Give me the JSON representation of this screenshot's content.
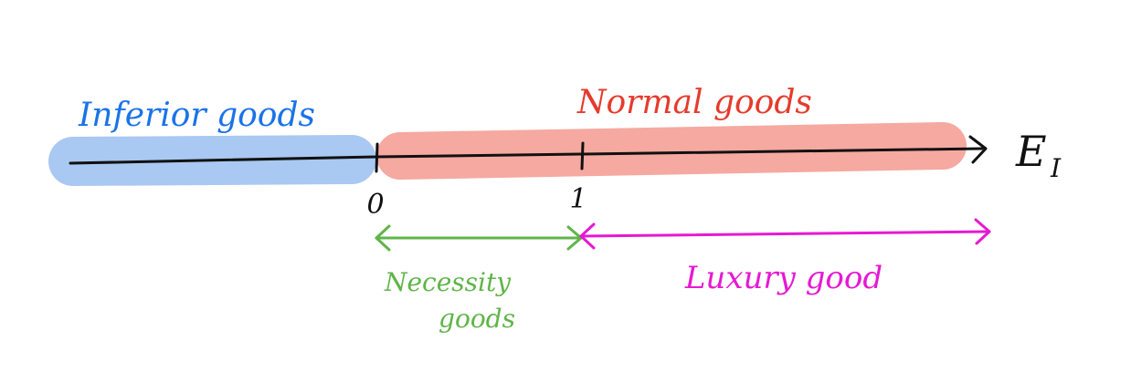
{
  "labels": {
    "inferior": "Inferior goods",
    "normal": "Normal goods",
    "necessity_line1": "Necessity",
    "necessity_line2": "goods",
    "luxury": "Luxury good",
    "tick_zero": "0",
    "tick_one": "1",
    "axis_main": "E",
    "axis_sub": "I"
  },
  "colors": {
    "inferior": "#1a73e8",
    "inferior_band": "#a9c8f2",
    "normal": "#e53b2c",
    "normal_band": "#f5a9a0",
    "necessity": "#5fb548",
    "luxury": "#e619d2",
    "axis": "#111111"
  }
}
